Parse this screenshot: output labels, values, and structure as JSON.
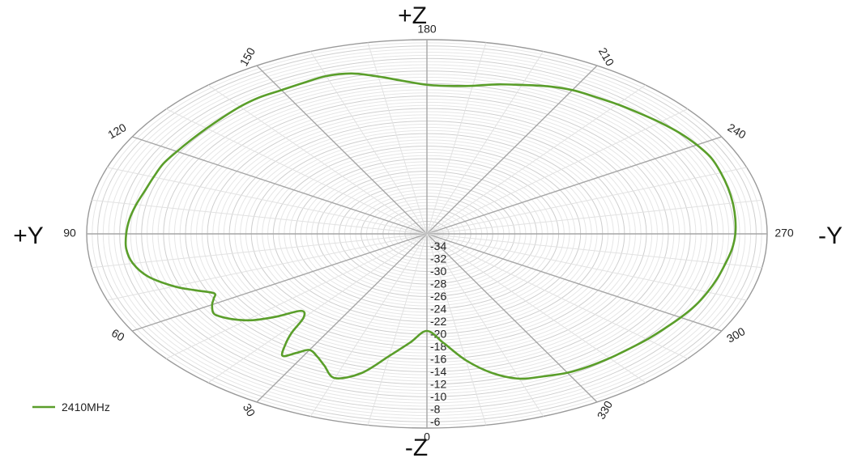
{
  "chart_data": {
    "type": "polar-line",
    "angle_direction": "clockwise",
    "zero_angle_position": "bottom",
    "angle_tick_labels": [
      "0",
      "30",
      "60",
      "90",
      "120",
      "150",
      "180",
      "210",
      "240",
      "270",
      "300",
      "330"
    ],
    "radial_tick_labels": [
      "-34",
      "-32",
      "-30",
      "-28",
      "-26",
      "-24",
      "-22",
      "-20",
      "-18",
      "-16",
      "-14",
      "-12",
      "-10",
      "-8",
      "-6"
    ],
    "radial_range": [
      -36,
      -5
    ],
    "axis_names": {
      "top": "+Z",
      "bottom": "-Z",
      "left": "+Y",
      "right": "-Y"
    },
    "legend_position": "bottom-left",
    "series": [
      {
        "name": "2410MHz",
        "color": "#5a9e2a",
        "points": [
          [
            0,
            -20.5
          ],
          [
            5,
            -18.6
          ],
          [
            10,
            -16.2
          ],
          [
            15,
            -13.0
          ],
          [
            20,
            -11.5
          ],
          [
            24,
            -13.0
          ],
          [
            27,
            -14.0
          ],
          [
            30,
            -14.6
          ],
          [
            32,
            -13.6
          ],
          [
            34,
            -12.5
          ],
          [
            36,
            -14.0
          ],
          [
            38,
            -16.0
          ],
          [
            40,
            -18.5
          ],
          [
            43,
            -19.2
          ],
          [
            46,
            -17.0
          ],
          [
            49,
            -15.0
          ],
          [
            52,
            -13.8
          ],
          [
            55,
            -13.0
          ],
          [
            57,
            -12.8
          ],
          [
            60,
            -13.4
          ],
          [
            62,
            -14.0
          ],
          [
            64,
            -14.4
          ],
          [
            67,
            -13.0
          ],
          [
            70,
            -11.5
          ],
          [
            75,
            -9.7
          ],
          [
            80,
            -8.8
          ],
          [
            85,
            -8.5
          ],
          [
            90,
            -8.6
          ],
          [
            95,
            -8.8
          ],
          [
            100,
            -9.1
          ],
          [
            105,
            -9.4
          ],
          [
            110,
            -9.5
          ],
          [
            115,
            -9.5
          ],
          [
            120,
            -9.7
          ],
          [
            125,
            -9.8
          ],
          [
            130,
            -9.8
          ],
          [
            135,
            -9.7
          ],
          [
            140,
            -9.5
          ],
          [
            145,
            -9.4
          ],
          [
            150,
            -9.5
          ],
          [
            155,
            -9.4
          ],
          [
            160,
            -9.2
          ],
          [
            165,
            -9.5
          ],
          [
            170,
            -10.5
          ],
          [
            175,
            -11.5
          ],
          [
            180,
            -12.2
          ],
          [
            185,
            -12.3
          ],
          [
            190,
            -12.0
          ],
          [
            195,
            -11.3
          ],
          [
            200,
            -10.7
          ],
          [
            205,
            -10.0
          ],
          [
            210,
            -9.5
          ],
          [
            215,
            -9.3
          ],
          [
            220,
            -9.0
          ],
          [
            225,
            -8.7
          ],
          [
            230,
            -8.3
          ],
          [
            235,
            -7.9
          ],
          [
            240,
            -7.6
          ],
          [
            245,
            -7.4
          ],
          [
            250,
            -7.5
          ],
          [
            255,
            -7.6
          ],
          [
            260,
            -7.7
          ],
          [
            265,
            -7.8
          ],
          [
            270,
            -7.9
          ],
          [
            275,
            -8.1
          ],
          [
            280,
            -8.4
          ],
          [
            285,
            -8.6
          ],
          [
            290,
            -8.8
          ],
          [
            295,
            -9.0
          ],
          [
            300,
            -9.3
          ],
          [
            305,
            -9.6
          ],
          [
            310,
            -9.8
          ],
          [
            315,
            -10.0
          ],
          [
            320,
            -10.1
          ],
          [
            325,
            -10.2
          ],
          [
            330,
            -10.4
          ],
          [
            335,
            -10.9
          ],
          [
            340,
            -11.4
          ],
          [
            345,
            -13.0
          ],
          [
            350,
            -15.5
          ],
          [
            355,
            -18.5
          ],
          [
            360,
            -20.5
          ]
        ]
      }
    ]
  }
}
